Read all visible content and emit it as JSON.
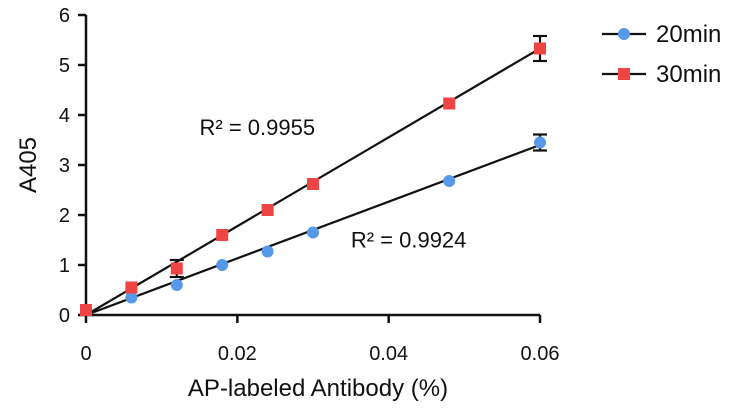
{
  "chart_data": {
    "type": "scatter",
    "xlabel": "AP-labeled Antibody (%)",
    "ylabel": "A405",
    "xlim": [
      0,
      0.06
    ],
    "ylim": [
      0,
      6
    ],
    "xticks": [
      0,
      0.02,
      0.04,
      0.06
    ],
    "xtick_labels": [
      "0",
      "0.02",
      "0.04",
      "0.06"
    ],
    "yticks": [
      0,
      1,
      2,
      3,
      4,
      5,
      6
    ],
    "ytick_labels": [
      "0",
      "1",
      "2",
      "3",
      "4",
      "5",
      "6"
    ],
    "grid": false,
    "legend_position": "top-right",
    "series": [
      {
        "name": "20min",
        "color": "#5599e8",
        "marker": "circle",
        "x": [
          0,
          0.006,
          0.012,
          0.018,
          0.024,
          0.03,
          0.048,
          0.06
        ],
        "y": [
          0.1,
          0.35,
          0.6,
          1.0,
          1.27,
          1.65,
          2.68,
          3.45
        ],
        "err": [
          0,
          0,
          0,
          0,
          0,
          0,
          0,
          0.16
        ],
        "fit": {
          "x": [
            0,
            0.06
          ],
          "y": [
            0.0,
            3.4
          ]
        }
      },
      {
        "name": "30min",
        "color": "#ee4444",
        "marker": "square",
        "x": [
          0,
          0.006,
          0.012,
          0.018,
          0.024,
          0.03,
          0.048,
          0.06
        ],
        "y": [
          0.1,
          0.55,
          0.93,
          1.6,
          2.1,
          2.62,
          4.23,
          5.33
        ],
        "err": [
          0,
          0,
          0.17,
          0,
          0,
          0,
          0,
          0.25
        ],
        "fit": {
          "x": [
            0,
            0.06
          ],
          "y": [
            0.0,
            5.33
          ]
        }
      }
    ],
    "annotations": [
      {
        "text": "R² = 0.9955",
        "x": 0.015,
        "y": 3.6
      },
      {
        "text": "R² = 0.9924",
        "x": 0.035,
        "y": 1.35
      }
    ]
  }
}
